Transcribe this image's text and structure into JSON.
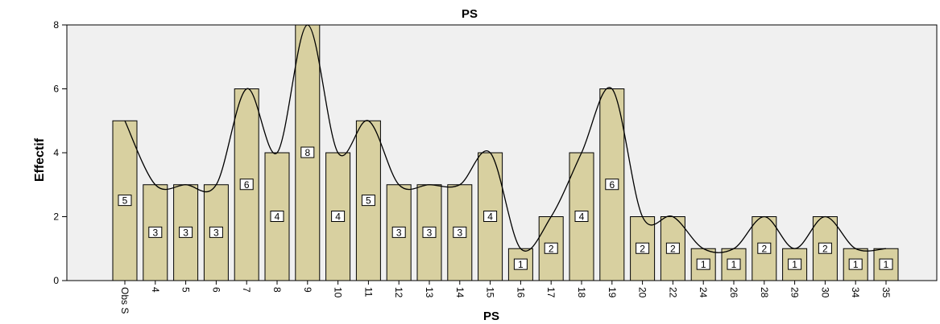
{
  "chart_data": {
    "type": "bar",
    "title": "PS",
    "xlabel": "PS",
    "ylabel": "Effectif",
    "ylim": [
      0,
      8
    ],
    "yticks": [
      "0",
      "2",
      "4",
      "6",
      "8"
    ],
    "categories": [
      "Obs S",
      "4",
      "5",
      "6",
      "7",
      "8",
      "9",
      "10",
      "11",
      "12",
      "13",
      "14",
      "15",
      "16",
      "17",
      "18",
      "19",
      "20",
      "22",
      "24",
      "26",
      "28",
      "29",
      "30",
      "34",
      "35"
    ],
    "values": [
      5,
      3,
      3,
      3,
      6,
      4,
      8,
      4,
      5,
      3,
      3,
      3,
      4,
      1,
      2,
      4,
      6,
      2,
      2,
      1,
      1,
      2,
      1,
      2,
      1,
      1
    ],
    "data_labels": [
      "5",
      "3",
      "3",
      "3",
      "6",
      "4",
      "8",
      "4",
      "5",
      "3",
      "3",
      "3",
      "4",
      "1",
      "2",
      "4",
      "6",
      "2",
      "2",
      "1",
      "1",
      "2",
      "1",
      "2",
      "1",
      "1"
    ],
    "grid": false,
    "legend": "none",
    "overlay": "smoothed line through bar tops",
    "colors": {
      "bar_fill": "#d8d0a0",
      "bar_stroke": "#000000",
      "plot_bg": "#f0f0f0",
      "line": "#000000"
    }
  }
}
